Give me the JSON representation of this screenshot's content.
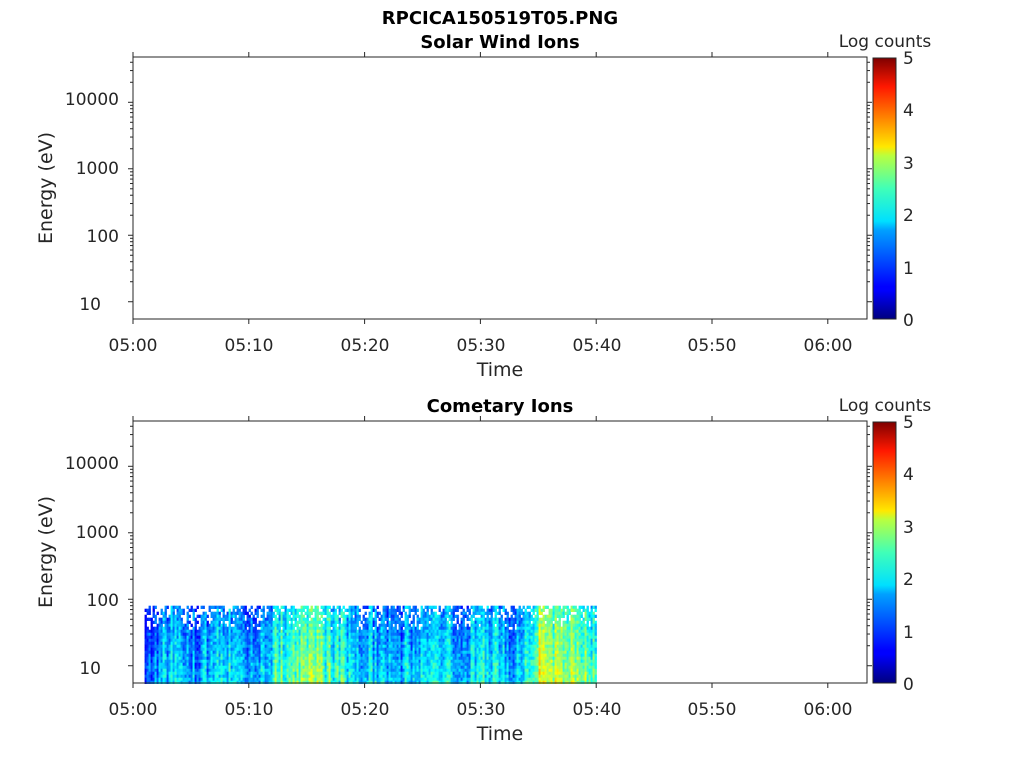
{
  "figure": {
    "title": "RPCICA150519T05.PNG"
  },
  "chart_data": [
    {
      "type": "heatmap",
      "title": "Solar Wind Ions",
      "xlabel": "Time",
      "ylabel": "Energy (eV)",
      "x_ticks": [
        "05:00",
        "05:10",
        "05:20",
        "05:30",
        "05:40",
        "05:50",
        "06:00"
      ],
      "y_ticks": [
        "10",
        "100",
        "1000",
        "10000"
      ],
      "y_scale": "log",
      "colorbar": {
        "label": "Log counts",
        "ticks": [
          "0",
          "1",
          "2",
          "3",
          "4",
          "5"
        ],
        "range": [
          0,
          5
        ],
        "colormap": "jet"
      },
      "data_present": false
    },
    {
      "type": "heatmap",
      "title": "Cometary Ions",
      "xlabel": "Time",
      "ylabel": "Energy (eV)",
      "x_ticks": [
        "05:00",
        "05:10",
        "05:20",
        "05:30",
        "05:40",
        "05:50",
        "06:00"
      ],
      "y_ticks": [
        "10",
        "100",
        "1000",
        "10000"
      ],
      "y_scale": "log",
      "colorbar": {
        "label": "Log counts",
        "ticks": [
          "0",
          "1",
          "2",
          "3",
          "4",
          "5"
        ],
        "range": [
          0,
          5
        ],
        "colormap": "jet"
      },
      "data_present": true,
      "data_time_range": [
        "05:01",
        "05:40"
      ],
      "data_energy_range_eV": [
        6,
        80
      ],
      "intensity_profile_log_counts": [
        {
          "time": "05:01",
          "level": 1.3
        },
        {
          "time": "05:03",
          "level": 1.8
        },
        {
          "time": "05:05",
          "level": 1.5
        },
        {
          "time": "05:08",
          "level": 1.9
        },
        {
          "time": "05:10",
          "level": 1.4
        },
        {
          "time": "05:13",
          "level": 2.4
        },
        {
          "time": "05:16",
          "level": 2.5
        },
        {
          "time": "05:19",
          "level": 1.9
        },
        {
          "time": "05:22",
          "level": 1.5
        },
        {
          "time": "05:25",
          "level": 1.9
        },
        {
          "time": "05:28",
          "level": 1.7
        },
        {
          "time": "05:31",
          "level": 1.9
        },
        {
          "time": "05:33",
          "level": 1.5
        },
        {
          "time": "05:35",
          "level": 2.9
        },
        {
          "time": "05:38",
          "level": 2.7
        },
        {
          "time": "05:40",
          "level": 2.3
        }
      ]
    }
  ]
}
